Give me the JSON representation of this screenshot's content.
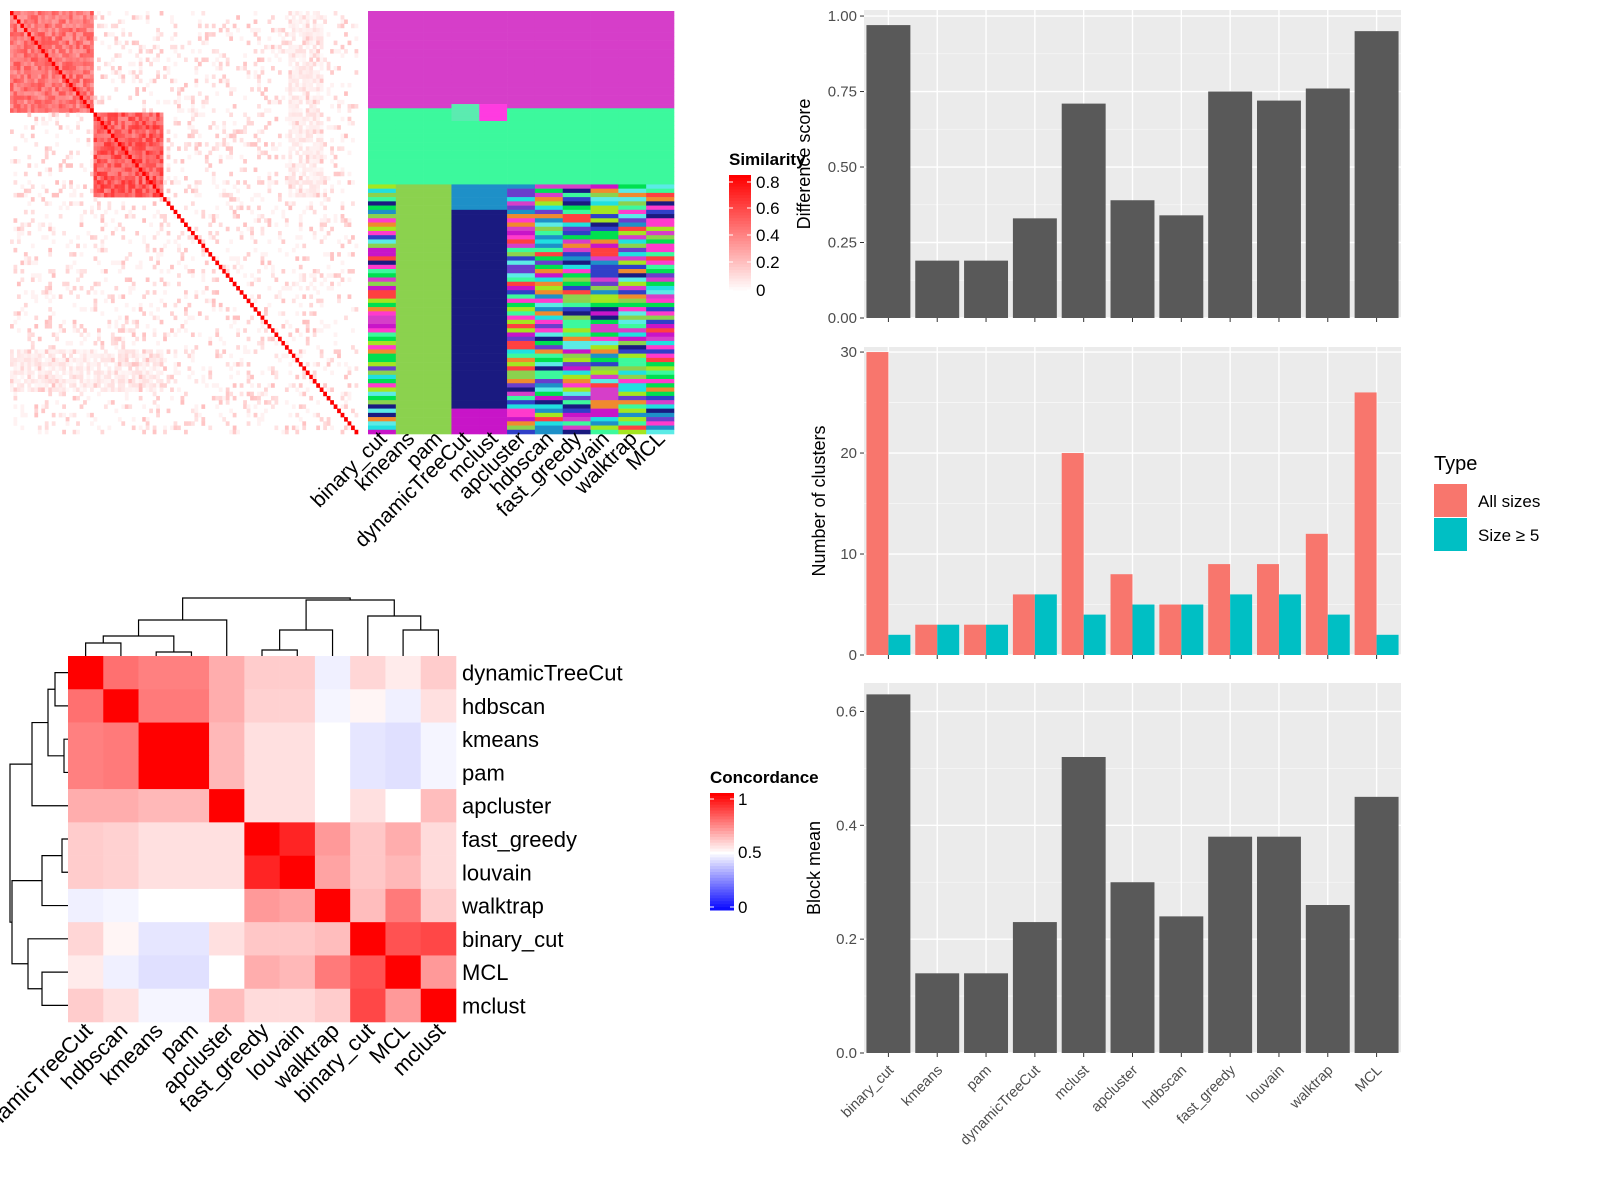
{
  "methods_order": [
    "binary_cut",
    "kmeans",
    "pam",
    "dynamicTreeCut",
    "mclust",
    "apcluster",
    "hdbscan",
    "fast_greedy",
    "louvain",
    "walktrap",
    "MCL"
  ],
  "similarity_legend": {
    "title": "Similarity",
    "ticks": [
      "0.8",
      "0.6",
      "0.4",
      "0.2",
      "0"
    ],
    "colors": {
      "high": "#ff0000",
      "low": "#ffffff"
    }
  },
  "concordance_legend": {
    "title": "Concordance",
    "ticks": [
      "1",
      "0.5",
      "0"
    ],
    "colors": {
      "high": "#ff0000",
      "mid": "#ffffff",
      "low": "#0000ff"
    }
  },
  "concordance_labels": [
    "dynamicTreeCut",
    "hdbscan",
    "kmeans",
    "pam",
    "apcluster",
    "fast_greedy",
    "louvain",
    "walktrap",
    "binary_cut",
    "MCL",
    "mclust"
  ],
  "bar_fill": "#595959",
  "panel_bg": "#ebebeb",
  "type_legend": {
    "title": "Type",
    "entries": [
      {
        "label": "All sizes",
        "color": "#f8766d"
      },
      {
        "label": "Size ≥ 5",
        "color": "#00bfc4"
      }
    ]
  },
  "chart_data": [
    {
      "type": "heatmap",
      "title": "",
      "legend_title": "Similarity",
      "note": "term similarity matrix with a strong diagonal and block structure",
      "value_range": [
        0,
        0.8
      ]
    },
    {
      "type": "heatmap",
      "title": "",
      "legend_title": "Concordance",
      "rows": [
        "dynamicTreeCut",
        "hdbscan",
        "kmeans",
        "pam",
        "apcluster",
        "fast_greedy",
        "louvain",
        "walktrap",
        "binary_cut",
        "MCL",
        "mclust"
      ],
      "columns": [
        "dynamicTreeCut",
        "hdbscan",
        "kmeans",
        "pam",
        "apcluster",
        "fast_greedy",
        "louvain",
        "walktrap",
        "binary_cut",
        "MCL",
        "mclust"
      ],
      "values": [
        [
          1.0,
          0.78,
          0.75,
          0.75,
          0.66,
          0.6,
          0.6,
          0.47,
          0.58,
          0.54,
          0.6
        ],
        [
          0.78,
          1.0,
          0.76,
          0.76,
          0.66,
          0.59,
          0.59,
          0.48,
          0.52,
          0.47,
          0.56
        ],
        [
          0.75,
          0.76,
          1.0,
          1.0,
          0.64,
          0.56,
          0.56,
          0.5,
          0.45,
          0.44,
          0.48
        ],
        [
          0.75,
          0.76,
          1.0,
          1.0,
          0.64,
          0.56,
          0.56,
          0.5,
          0.45,
          0.44,
          0.48
        ],
        [
          0.66,
          0.66,
          0.64,
          0.64,
          1.0,
          0.56,
          0.56,
          0.5,
          0.56,
          0.5,
          0.63
        ],
        [
          0.6,
          0.59,
          0.56,
          0.56,
          0.56,
          1.0,
          0.93,
          0.7,
          0.61,
          0.66,
          0.57
        ],
        [
          0.6,
          0.59,
          0.56,
          0.56,
          0.56,
          0.93,
          1.0,
          0.68,
          0.61,
          0.64,
          0.57
        ],
        [
          0.47,
          0.48,
          0.5,
          0.5,
          0.5,
          0.7,
          0.68,
          1.0,
          0.63,
          0.76,
          0.6
        ],
        [
          0.58,
          0.52,
          0.45,
          0.45,
          0.56,
          0.61,
          0.61,
          0.63,
          1.0,
          0.84,
          0.86
        ],
        [
          0.54,
          0.47,
          0.44,
          0.44,
          0.5,
          0.66,
          0.64,
          0.76,
          0.84,
          1.0,
          0.7
        ],
        [
          0.6,
          0.56,
          0.48,
          0.48,
          0.63,
          0.57,
          0.57,
          0.6,
          0.86,
          0.7,
          1.0
        ]
      ],
      "value_range": [
        0,
        1
      ]
    },
    {
      "type": "bar",
      "title": "",
      "xlabel": "",
      "ylabel": "Difference score",
      "categories": [
        "binary_cut",
        "kmeans",
        "pam",
        "dynamicTreeCut",
        "mclust",
        "apcluster",
        "hdbscan",
        "fast_greedy",
        "louvain",
        "walktrap",
        "MCL"
      ],
      "values": [
        0.97,
        0.19,
        0.19,
        0.33,
        0.71,
        0.39,
        0.34,
        0.75,
        0.72,
        0.76,
        0.95
      ],
      "ylim": [
        0,
        1.02
      ],
      "yticks": [
        "0.00",
        "0.25",
        "0.50",
        "0.75",
        "1.00"
      ],
      "grid": true
    },
    {
      "type": "bar",
      "title": "",
      "xlabel": "",
      "ylabel": "Number of clusters",
      "categories": [
        "binary_cut",
        "kmeans",
        "pam",
        "dynamicTreeCut",
        "mclust",
        "apcluster",
        "hdbscan",
        "fast_greedy",
        "louvain",
        "walktrap",
        "MCL"
      ],
      "series": [
        {
          "name": "All sizes",
          "values": [
            30,
            3,
            3,
            6,
            20,
            8,
            5,
            9,
            9,
            12,
            26
          ]
        },
        {
          "name": "Size ≥ 5",
          "values": [
            2,
            3,
            3,
            6,
            4,
            5,
            5,
            6,
            6,
            4,
            2
          ]
        }
      ],
      "ylim": [
        0,
        30.5
      ],
      "yticks": [
        "0",
        "10",
        "20",
        "30"
      ],
      "legend": "right",
      "grid": true
    },
    {
      "type": "bar",
      "title": "",
      "xlabel": "",
      "ylabel": "Block mean",
      "categories": [
        "binary_cut",
        "kmeans",
        "pam",
        "dynamicTreeCut",
        "mclust",
        "apcluster",
        "hdbscan",
        "fast_greedy",
        "louvain",
        "walktrap",
        "MCL"
      ],
      "values": [
        0.63,
        0.14,
        0.14,
        0.23,
        0.52,
        0.3,
        0.24,
        0.38,
        0.38,
        0.26,
        0.45
      ],
      "ylim": [
        0,
        0.65
      ],
      "yticks": [
        "0.0",
        "0.2",
        "0.4",
        "0.6"
      ],
      "grid": true
    }
  ]
}
